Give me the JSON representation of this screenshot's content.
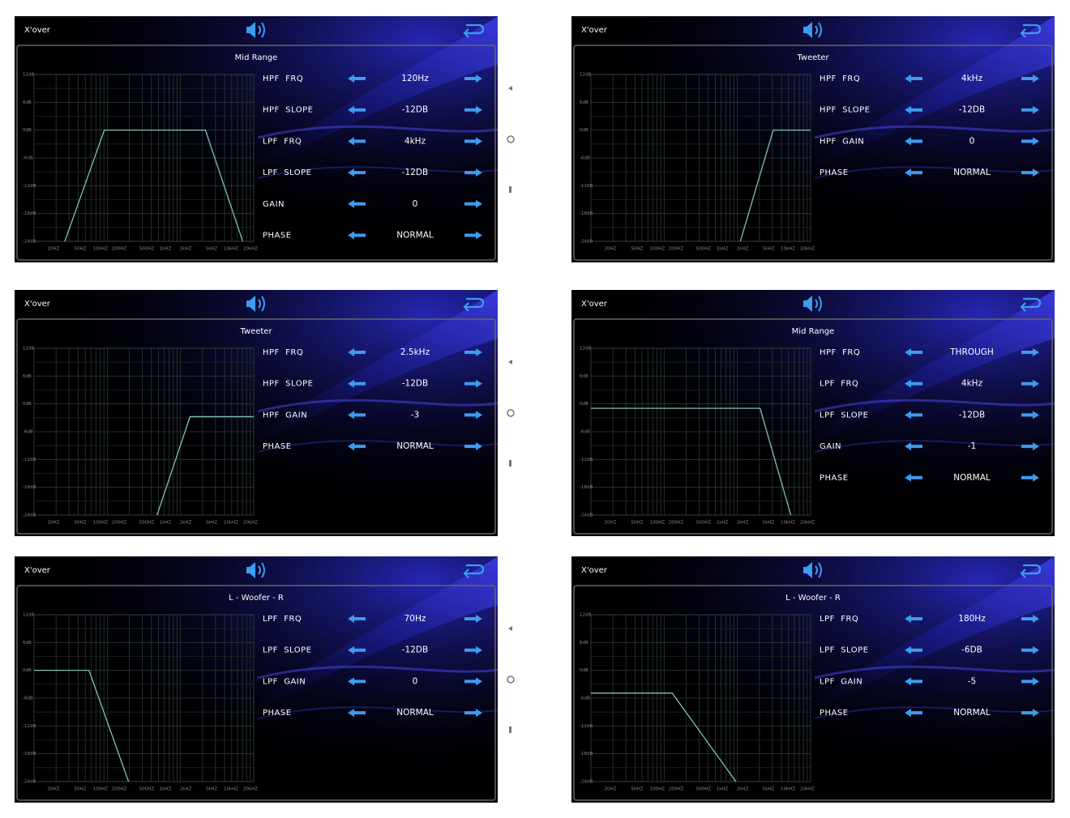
{
  "axis": {
    "y": [
      "12dB",
      "6dB",
      "0dB",
      "-6dB",
      "-12dB",
      "-18dB",
      "-24dB"
    ],
    "x": [
      "20HZ",
      "50HZ",
      "100HZ",
      "200HZ",
      "500HZ",
      "1kHZ",
      "2kHZ",
      "5kHZ",
      "10kHZ",
      "20kHZ"
    ]
  },
  "screens": [
    {
      "header": "X'over",
      "title": "Mid Range",
      "params": [
        {
          "label": "HPF  FRQ",
          "value": "120Hz"
        },
        {
          "label": "HPF  SLOPE",
          "value": "-12DB"
        },
        {
          "label": "LPF  FRQ",
          "value": "4kHz"
        },
        {
          "label": "LPF  SLOPE",
          "value": "-12DB"
        },
        {
          "label": "GAIN",
          "value": "0"
        },
        {
          "label": "PHASE",
          "value": "NORMAL"
        }
      ]
    },
    {
      "header": "X'over",
      "title": "Tweeter",
      "params": [
        {
          "label": "HPF  FRQ",
          "value": "4kHz"
        },
        {
          "label": "HPF  SLOPE",
          "value": "-12DB"
        },
        {
          "label": "HPF  GAIN",
          "value": "0"
        },
        {
          "label": "PHASE",
          "value": "NORMAL"
        }
      ]
    },
    {
      "header": "X'over",
      "title": "Tweeter",
      "params": [
        {
          "label": "HPF  FRQ",
          "value": "2.5kHz"
        },
        {
          "label": "HPF  SLOPE",
          "value": "-12DB"
        },
        {
          "label": "HPF  GAIN",
          "value": "-3"
        },
        {
          "label": "PHASE",
          "value": "NORMAL"
        }
      ]
    },
    {
      "header": "X'over",
      "title": "Mid Range",
      "params": [
        {
          "label": "HPF  FRQ",
          "value": "THROUGH"
        },
        {
          "label": "LPF  FRQ",
          "value": "4kHz"
        },
        {
          "label": "LPF  SLOPE",
          "value": "-12DB"
        },
        {
          "label": "GAIN",
          "value": "-1"
        },
        {
          "label": "PHASE",
          "value": "NORMAL"
        }
      ]
    },
    {
      "header": "X'over",
      "title": "L - Woofer - R",
      "params": [
        {
          "label": "LPF  FRQ",
          "value": "70Hz"
        },
        {
          "label": "LPF  SLOPE",
          "value": "-12DB"
        },
        {
          "label": "LPF  GAIN",
          "value": "0"
        },
        {
          "label": "PHASE",
          "value": "NORMAL"
        }
      ]
    },
    {
      "header": "X'over",
      "title": "L - Woofer - R",
      "params": [
        {
          "label": "LPF  FRQ",
          "value": "180Hz"
        },
        {
          "label": "LPF  SLOPE",
          "value": "-6DB"
        },
        {
          "label": "LPF  GAIN",
          "value": "-5"
        },
        {
          "label": "PHASE",
          "value": "NORMAL"
        }
      ]
    }
  ]
}
